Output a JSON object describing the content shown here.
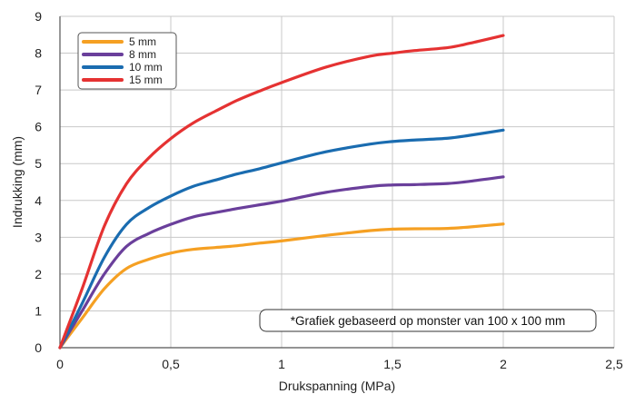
{
  "chart_data": {
    "type": "line",
    "xlabel": "Drukspanning (MPa)",
    "ylabel": "Indrukking (mm)",
    "xlim": [
      0,
      2.5
    ],
    "ylim": [
      0,
      9
    ],
    "x_ticks": [
      "0",
      "0,5",
      "1",
      "1,5",
      "2",
      "2,5"
    ],
    "y_ticks": [
      "0",
      "1",
      "2",
      "3",
      "4",
      "5",
      "6",
      "7",
      "8",
      "9"
    ],
    "grid": true,
    "legend_position": "top-left",
    "annotation": "*Grafiek gebaseerd op monster van 100 x 100 mm",
    "series": [
      {
        "name": "5 mm",
        "color": "#f5a023",
        "x": [
          0,
          0.1,
          0.2,
          0.3,
          0.4,
          0.5,
          0.6,
          0.7,
          0.8,
          0.9,
          1.0,
          1.2,
          1.4,
          1.5,
          1.6,
          1.75,
          1.85,
          2.0
        ],
        "y": [
          0,
          0.8,
          1.6,
          2.15,
          2.4,
          2.57,
          2.67,
          2.72,
          2.77,
          2.84,
          2.9,
          3.05,
          3.18,
          3.22,
          3.23,
          3.24,
          3.28,
          3.36
        ]
      },
      {
        "name": "8 mm",
        "color": "#6a3f9b",
        "x": [
          0,
          0.1,
          0.2,
          0.3,
          0.4,
          0.5,
          0.6,
          0.7,
          0.8,
          0.9,
          1.0,
          1.2,
          1.4,
          1.5,
          1.6,
          1.75,
          1.85,
          2.0
        ],
        "y": [
          0,
          1.0,
          2.0,
          2.75,
          3.1,
          3.35,
          3.55,
          3.67,
          3.78,
          3.88,
          3.98,
          4.22,
          4.38,
          4.42,
          4.43,
          4.46,
          4.52,
          4.64
        ]
      },
      {
        "name": "10 mm",
        "color": "#1a6cb0",
        "x": [
          0,
          0.1,
          0.2,
          0.3,
          0.4,
          0.5,
          0.6,
          0.7,
          0.8,
          0.9,
          1.0,
          1.2,
          1.4,
          1.5,
          1.6,
          1.75,
          1.85,
          2.0
        ],
        "y": [
          0,
          1.2,
          2.45,
          3.35,
          3.8,
          4.12,
          4.38,
          4.55,
          4.72,
          4.86,
          5.02,
          5.32,
          5.53,
          5.6,
          5.64,
          5.69,
          5.77,
          5.91
        ]
      },
      {
        "name": "15 mm",
        "color": "#e53232",
        "x": [
          0,
          0.1,
          0.2,
          0.3,
          0.4,
          0.5,
          0.6,
          0.7,
          0.8,
          0.9,
          1.0,
          1.2,
          1.4,
          1.5,
          1.6,
          1.75,
          1.85,
          2.0
        ],
        "y": [
          0,
          1.6,
          3.3,
          4.45,
          5.15,
          5.68,
          6.1,
          6.42,
          6.72,
          6.97,
          7.2,
          7.62,
          7.92,
          8.0,
          8.07,
          8.15,
          8.27,
          8.48
        ]
      }
    ]
  }
}
